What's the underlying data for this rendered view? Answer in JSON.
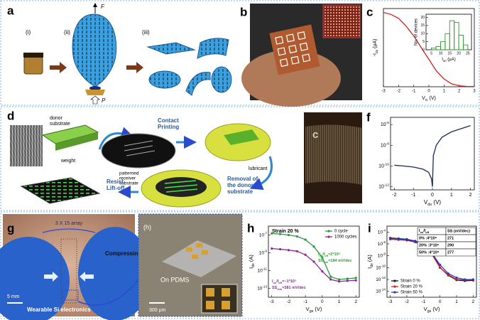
{
  "panels": {
    "a": {
      "label": "a",
      "steps": [
        "(i)",
        "(ii)",
        "(iii)"
      ],
      "force_labels": [
        "F",
        "P"
      ]
    },
    "b": {
      "label": "b"
    },
    "c": {
      "label": "c",
      "chart": {
        "type": "line",
        "x_label": [
          "V",
          "G",
          " (V)"
        ],
        "y_label": [
          "-I",
          "ds",
          " (μA)"
        ],
        "xlim": [
          -3,
          3
        ],
        "xticks": [
          -3,
          -2,
          -1,
          0,
          1,
          2,
          3
        ],
        "ylim": [
          0,
          40
        ],
        "series": [
          {
            "color": "#d42020",
            "x": [
              -3,
              -2.5,
              -2,
              -1.5,
              -1,
              -0.5,
              0,
              0.5,
              1,
              1.5,
              2,
              2.5,
              3
            ],
            "values": [
              38,
              37,
              35,
              31,
              26,
              20,
              14,
              8,
              4,
              1.5,
              0.5,
              0.2,
              0.1
            ]
          }
        ]
      },
      "inset": {
        "type": "histogram",
        "x_label": [
          "I",
          "on",
          " (μA)"
        ],
        "y_label": "No. of devices",
        "color": "#2a9a2a",
        "bins": [
          5,
          7.5,
          10,
          12.5,
          15,
          17.5,
          20,
          22.5,
          25
        ],
        "counts": [
          1,
          2,
          5,
          10,
          18,
          17,
          9,
          3
        ],
        "xlim": [
          2,
          27
        ],
        "xticks": [
          5,
          10,
          15,
          20,
          25
        ],
        "ylim": [
          0,
          22
        ],
        "yticks": [
          0,
          5,
          10,
          15,
          20
        ]
      }
    },
    "d": {
      "label": "d",
      "texts": {
        "donor": [
          "donor",
          "substrate"
        ],
        "weight": [
          "weight"
        ],
        "contact": [
          "Contact",
          "Printing"
        ],
        "receiver": [
          "patterned",
          "receiver",
          "substrate"
        ],
        "lubricant": [
          "lubricant"
        ],
        "removal": [
          "Removal of",
          "the donor",
          "substrate"
        ],
        "liftoff": [
          "Resist",
          "Lift-off"
        ]
      }
    },
    "e": {
      "label": "e",
      "photo_label": "c"
    },
    "f": {
      "label": "f",
      "chart": {
        "type": "line",
        "log_y": true,
        "x_label": [
          "V",
          "ds",
          " (V)"
        ],
        "xlim": [
          -2.2,
          2.2
        ],
        "xticks": [
          -2,
          -1,
          0,
          1,
          2
        ],
        "ylim": [
          5e-13,
          5e-06
        ],
        "yticks": [
          {
            "value": 1e-12,
            "label": [
              "10",
              "-12"
            ]
          },
          {
            "value": 1e-10,
            "label": [
              "10",
              "-10"
            ]
          },
          {
            "value": 1e-08,
            "label": [
              "10",
              "-8"
            ]
          },
          {
            "value": 1e-06,
            "label": [
              "10",
              "-6"
            ]
          }
        ],
        "series": [
          {
            "color": "#1a2a5a",
            "x": [
              -2,
              -1.5,
              -1,
              -0.5,
              -0.2,
              -0.05,
              0,
              0.05,
              0.2,
              0.5,
              1,
              1.5,
              2
            ],
            "values": [
              1.2e-10,
              1e-10,
              8e-11,
              5e-11,
              2.5e-11,
              6e-12,
              1e-12,
              1e-09,
              1e-08,
              6e-08,
              2e-07,
              4e-07,
              8e-07
            ]
          }
        ]
      }
    },
    "g": {
      "label": "g",
      "texts": {
        "array": "3 X 15 array",
        "compress": "Compressing",
        "scale": "5 mm",
        "caption": "Wearable Si electronics"
      }
    },
    "h": {
      "label": "h",
      "photo": {
        "label": "(h)",
        "substrate": "On PDMS",
        "scale": "300 μm"
      },
      "chart": {
        "type": "line",
        "log_y": true,
        "markers": true,
        "legend": "upper right",
        "x_label": [
          "V",
          "gs",
          " (V)"
        ],
        "y_label": [
          "I",
          "ds",
          " (A)"
        ],
        "xlim": [
          -3.2,
          2.2
        ],
        "xticks": [
          -3,
          -2,
          -1,
          0,
          1,
          2
        ],
        "ylim": [
          1e-14,
          1e-06
        ],
        "yticks": [
          {
            "value": 1e-13,
            "label": [
              "10",
              "-13"
            ]
          },
          {
            "value": 1e-11,
            "label": [
              "10",
              "-11"
            ]
          },
          {
            "value": 1e-09,
            "label": [
              "10",
              "-9"
            ]
          },
          {
            "value": 1e-07,
            "label": [
              "10",
              "-7"
            ]
          }
        ],
        "series": [
          {
            "name": "0 cycle",
            "color": "#2a9a3a",
            "x": [
              -3,
              -2.5,
              -2,
              -1.5,
              -1,
              -0.5,
              0,
              0.5,
              1,
              1.5,
              2
            ],
            "values": [
              1.5e-07,
              1.3e-07,
              1e-07,
              7e-08,
              3e-08,
              5e-09,
              3e-10,
              2e-12,
              1e-12,
              1.2e-12,
              1.5e-12
            ]
          },
          {
            "name": "1000 cycles",
            "color": "#8a2a9a",
            "x": [
              -3,
              -2.5,
              -2,
              -1.5,
              -1,
              -0.5,
              0,
              0.5,
              1,
              1.5,
              2
            ],
            "values": [
              3e-09,
              2.5e-09,
              2e-09,
              1.5e-09,
              6e-10,
              1e-10,
              8e-12,
              1e-12,
              6e-13,
              7e-13,
              8e-13
            ]
          }
        ],
        "annotations": [
          {
            "text": [
              "Strain 20 %"
            ],
            "color": "#000000"
          },
          {
            "text": [
              "I",
              "on",
              "/I",
              "off",
              "=2*10⁵"
            ],
            "color": "#2a9a3a"
          },
          {
            "text": [
              "SS",
              "min",
              "=184 mV/dec"
            ],
            "color": "#2a9a3a"
          },
          {
            "text": [
              "I",
              "on",
              "/I",
              "off",
              "=~1*10⁵"
            ],
            "color": "#8a2a9a"
          },
          {
            "text": [
              "SS",
              "min",
              "=381 mV/dec"
            ],
            "color": "#8a2a9a"
          }
        ]
      }
    },
    "i": {
      "label": "i",
      "chart": {
        "type": "line",
        "log_y": true,
        "markers": true,
        "legend": "lower left",
        "x_label": [
          "V",
          "gs",
          " (V)"
        ],
        "y_label": [
          "I",
          "ds",
          " (A)"
        ],
        "xlim": [
          -3.2,
          2.2
        ],
        "xticks": [
          -3,
          -2,
          -1,
          0,
          1,
          2
        ],
        "ylim": [
          1e-15,
          0.001
        ],
        "yticks": [
          {
            "value": 1e-14,
            "label": [
              "10",
              "-14"
            ]
          },
          {
            "value": 1e-12,
            "label": [
              "10",
              "-12"
            ]
          },
          {
            "value": 1e-10,
            "label": [
              "10",
              "-10"
            ]
          },
          {
            "value": 1e-08,
            "label": [
              "10",
              "-8"
            ]
          },
          {
            "value": 1e-06,
            "label": [
              "10",
              "-6"
            ]
          },
          {
            "value": 0.0001,
            "label": [
              "10",
              "-4"
            ]
          }
        ],
        "series": [
          {
            "name": "Strain 0 %",
            "color": "#111111",
            "x": [
              -3,
              -2.5,
              -2,
              -1.5,
              -1,
              -0.5,
              0,
              0.5,
              1,
              1.5,
              2
            ],
            "values": [
              1e-05,
              8e-06,
              6e-06,
              3e-06,
              8e-07,
              5e-08,
              1e-10,
              5e-12,
              8e-13,
              6e-13,
              7e-13
            ]
          },
          {
            "name": "Strain 20 %",
            "color": "#d42020",
            "x": [
              -3,
              -2.5,
              -2,
              -1.5,
              -1,
              -0.5,
              0,
              0.5,
              1,
              1.5,
              2
            ],
            "values": [
              6e-06,
              5e-06,
              4e-06,
              2e-06,
              5e-07,
              2e-08,
              1e-10,
              6e-12,
              1e-12,
              8e-13,
              9e-13
            ]
          },
          {
            "name": "Strain 50 %",
            "color": "#2a3ad0",
            "x": [
              -3,
              -2.5,
              -2,
              -1.5,
              -1,
              -0.5,
              0,
              0.5,
              1,
              1.5,
              2
            ],
            "values": [
              8e-06,
              7e-06,
              5e-06,
              2.5e-06,
              6e-07,
              3e-08,
              3e-10,
              1e-11,
              2e-12,
              1e-12,
              1e-12
            ]
          }
        ]
      },
      "table": {
        "header": [
          [
            "I",
            "on",
            "/I",
            "off"
          ],
          "SS (mV/dec)"
        ],
        "rows": [
          [
            "0% :4*10⁸",
            "271"
          ],
          [
            "20% :3*10⁸",
            "290"
          ],
          [
            "50% :4*10⁸",
            "277"
          ]
        ]
      }
    }
  }
}
